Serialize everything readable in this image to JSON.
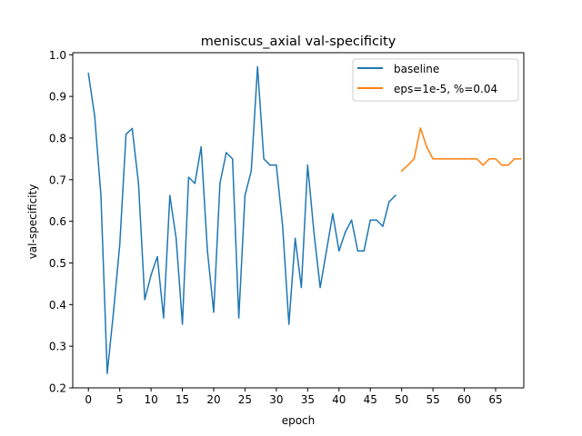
{
  "chart_data": {
    "type": "line",
    "title": "meniscus_axial val-specificity",
    "xlabel": "epoch",
    "ylabel": "val-specificity",
    "xlim": [
      -2.5,
      69.5
    ],
    "ylim": [
      0.2,
      1.005
    ],
    "xticks": [
      0,
      5,
      10,
      15,
      20,
      25,
      30,
      35,
      40,
      45,
      50,
      55,
      60,
      65
    ],
    "yticks": [
      0.2,
      0.3,
      0.4,
      0.5,
      0.6,
      0.7,
      0.8,
      0.9,
      1.0
    ],
    "grid": false,
    "legend_position": "top-right",
    "series": [
      {
        "name": "baseline",
        "color": "#1f77b4",
        "x": [
          0,
          1,
          2,
          3,
          4,
          5,
          6,
          7,
          8,
          9,
          10,
          11,
          12,
          13,
          14,
          15,
          16,
          17,
          18,
          19,
          20,
          21,
          22,
          23,
          24,
          25,
          26,
          27,
          28,
          29,
          30,
          31,
          32,
          33,
          34,
          35,
          36,
          37,
          38,
          39,
          40,
          41,
          42,
          43,
          44,
          45,
          46,
          47,
          48,
          49
        ],
        "y": [
          0.955,
          0.853,
          0.662,
          0.235,
          0.382,
          0.544,
          0.809,
          0.823,
          0.691,
          0.412,
          0.471,
          0.515,
          0.368,
          0.662,
          0.559,
          0.353,
          0.706,
          0.691,
          0.779,
          0.529,
          0.382,
          0.691,
          0.765,
          0.75,
          0.368,
          0.662,
          0.721,
          0.971,
          0.75,
          0.735,
          0.735,
          0.588,
          0.353,
          0.559,
          0.441,
          0.735,
          0.574,
          0.441,
          0.529,
          0.618,
          0.529,
          0.574,
          0.603,
          0.529,
          0.529,
          0.603,
          0.603,
          0.588,
          0.647,
          0.662
        ]
      },
      {
        "name": "eps=1e-5, %=0.04",
        "color": "#ff7f0e",
        "x": [
          50,
          51,
          52,
          53,
          54,
          55,
          56,
          57,
          58,
          59,
          60,
          61,
          62,
          63,
          64,
          65,
          66,
          67,
          68,
          69
        ],
        "y": [
          0.721,
          0.735,
          0.75,
          0.824,
          0.779,
          0.75,
          0.75,
          0.75,
          0.75,
          0.75,
          0.75,
          0.75,
          0.75,
          0.735,
          0.75,
          0.75,
          0.735,
          0.735,
          0.75,
          0.75
        ]
      }
    ]
  }
}
